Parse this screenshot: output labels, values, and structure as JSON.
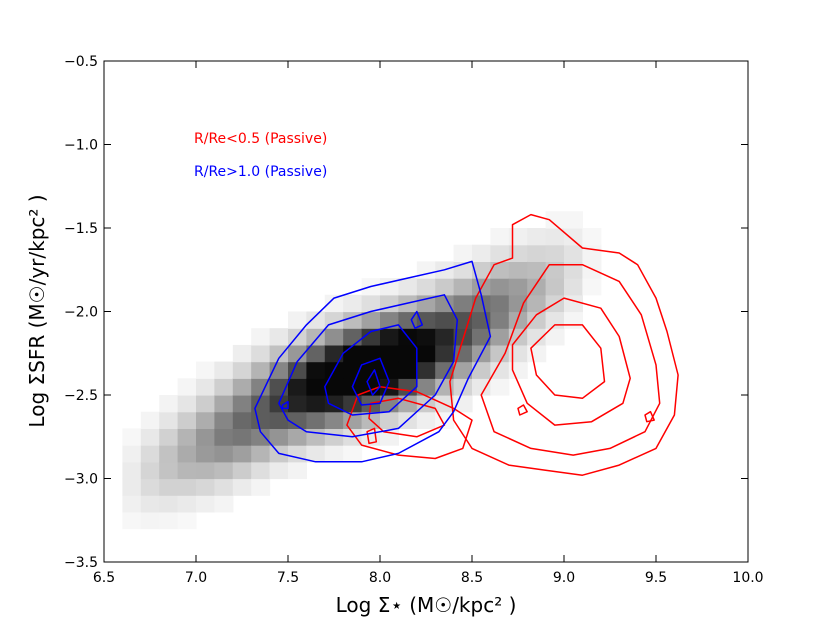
{
  "chart_data": {
    "type": "heatmap",
    "title": "",
    "xlabel": "Log Σ⋆ (M☉/kpc² )",
    "ylabel": "Log ΣSFR (M☉/yr/kpc² )",
    "xlim": [
      6.5,
      10.0
    ],
    "ylim": [
      -3.5,
      -0.5
    ],
    "xticks": [
      6.5,
      7.0,
      7.5,
      8.0,
      8.5,
      9.0,
      9.5,
      10.0
    ],
    "xtick_labels": [
      "6.5",
      "7.0",
      "7.5",
      "8.0",
      "8.5",
      "9.0",
      "9.5",
      "10.0"
    ],
    "yticks": [
      -0.5,
      -1.0,
      -1.5,
      -2.0,
      -2.5,
      -3.0,
      -3.5
    ],
    "ytick_labels": [
      "−0.5",
      "−1.0",
      "−1.5",
      "−2.0",
      "−2.5",
      "−3.0",
      "−3.5"
    ],
    "grid": false,
    "legend_placement": "top-left",
    "background_density": {
      "description_free": true,
      "ridge_slope": 0.52,
      "ridge_intercept_at_x8": -2.3,
      "ridge_width": 0.26,
      "x_range": [
        6.6,
        9.2
      ],
      "peak_location": [
        7.95,
        -2.35
      ],
      "colormap": "Greys"
    },
    "series": [
      {
        "name": "R/Re<0.5 (Passive)",
        "color": "#ff0000",
        "contours": [
          [
            [
              8.38,
              -2.42
            ],
            [
              8.52,
              -1.92
            ],
            [
              8.62,
              -1.72
            ],
            [
              8.72,
              -1.68
            ],
            [
              8.72,
              -1.48
            ],
            [
              8.82,
              -1.42
            ],
            [
              8.92,
              -1.45
            ],
            [
              9.1,
              -1.62
            ],
            [
              9.3,
              -1.65
            ],
            [
              9.4,
              -1.72
            ],
            [
              9.5,
              -1.92
            ],
            [
              9.56,
              -2.12
            ],
            [
              9.62,
              -2.38
            ],
            [
              9.6,
              -2.62
            ],
            [
              9.5,
              -2.82
            ],
            [
              9.3,
              -2.92
            ],
            [
              9.1,
              -2.98
            ],
            [
              8.9,
              -2.95
            ],
            [
              8.7,
              -2.92
            ],
            [
              8.5,
              -2.82
            ],
            [
              8.4,
              -2.65
            ]
          ],
          [
            [
              8.55,
              -2.5
            ],
            [
              8.68,
              -2.25
            ],
            [
              8.78,
              -1.95
            ],
            [
              8.92,
              -1.72
            ],
            [
              9.1,
              -1.72
            ],
            [
              9.3,
              -1.82
            ],
            [
              9.42,
              -2.02
            ],
            [
              9.5,
              -2.32
            ],
            [
              9.52,
              -2.55
            ],
            [
              9.44,
              -2.72
            ],
            [
              9.25,
              -2.82
            ],
            [
              9.05,
              -2.86
            ],
            [
              8.82,
              -2.82
            ],
            [
              8.62,
              -2.72
            ]
          ],
          [
            [
              8.72,
              -2.2
            ],
            [
              8.85,
              -2.02
            ],
            [
              9.0,
              -1.92
            ],
            [
              9.2,
              -1.98
            ],
            [
              9.3,
              -2.15
            ],
            [
              9.36,
              -2.4
            ],
            [
              9.32,
              -2.55
            ],
            [
              9.15,
              -2.66
            ],
            [
              8.95,
              -2.68
            ],
            [
              8.8,
              -2.55
            ],
            [
              8.72,
              -2.35
            ]
          ],
          [
            [
              8.82,
              -2.22
            ],
            [
              8.95,
              -2.08
            ],
            [
              9.1,
              -2.08
            ],
            [
              9.2,
              -2.22
            ],
            [
              9.22,
              -2.42
            ],
            [
              9.1,
              -2.52
            ],
            [
              8.95,
              -2.5
            ],
            [
              8.85,
              -2.38
            ]
          ],
          [
            [
              7.88,
              -2.5
            ],
            [
              8.0,
              -2.45
            ],
            [
              8.2,
              -2.48
            ],
            [
              8.4,
              -2.58
            ],
            [
              8.5,
              -2.65
            ],
            [
              8.45,
              -2.82
            ],
            [
              8.3,
              -2.88
            ],
            [
              8.1,
              -2.86
            ],
            [
              7.9,
              -2.8
            ],
            [
              7.82,
              -2.68
            ]
          ],
          [
            [
              7.95,
              -2.55
            ],
            [
              8.1,
              -2.52
            ],
            [
              8.3,
              -2.58
            ],
            [
              8.35,
              -2.68
            ],
            [
              8.2,
              -2.75
            ],
            [
              8.02,
              -2.72
            ],
            [
              7.94,
              -2.64
            ]
          ],
          [
            [
              7.93,
              -2.72
            ],
            [
              7.97,
              -2.7
            ],
            [
              7.98,
              -2.78
            ],
            [
              7.94,
              -2.79
            ]
          ],
          [
            [
              9.44,
              -2.62
            ],
            [
              9.47,
              -2.6
            ],
            [
              9.49,
              -2.65
            ],
            [
              9.45,
              -2.66
            ]
          ],
          [
            [
              8.75,
              -2.58
            ],
            [
              8.78,
              -2.56
            ],
            [
              8.8,
              -2.6
            ],
            [
              8.76,
              -2.62
            ]
          ]
        ]
      },
      {
        "name": "R/Re>1.0 (Passive)",
        "color": "#0000ff",
        "contours": [
          [
            [
              7.32,
              -2.58
            ],
            [
              7.45,
              -2.28
            ],
            [
              7.6,
              -2.08
            ],
            [
              7.75,
              -1.92
            ],
            [
              7.95,
              -1.85
            ],
            [
              8.15,
              -1.8
            ],
            [
              8.35,
              -1.75
            ],
            [
              8.5,
              -1.7
            ],
            [
              8.55,
              -1.9
            ],
            [
              8.6,
              -2.15
            ],
            [
              8.48,
              -2.4
            ],
            [
              8.4,
              -2.6
            ],
            [
              8.32,
              -2.72
            ],
            [
              8.1,
              -2.85
            ],
            [
              7.9,
              -2.9
            ],
            [
              7.65,
              -2.9
            ],
            [
              7.45,
              -2.85
            ],
            [
              7.35,
              -2.72
            ]
          ],
          [
            [
              7.45,
              -2.55
            ],
            [
              7.55,
              -2.3
            ],
            [
              7.72,
              -2.08
            ],
            [
              7.95,
              -2.0
            ],
            [
              8.15,
              -1.95
            ],
            [
              8.35,
              -1.9
            ],
            [
              8.42,
              -2.05
            ],
            [
              8.4,
              -2.3
            ],
            [
              8.3,
              -2.5
            ],
            [
              8.1,
              -2.7
            ],
            [
              7.85,
              -2.75
            ],
            [
              7.6,
              -2.72
            ],
            [
              7.5,
              -2.65
            ]
          ],
          [
            [
              7.7,
              -2.45
            ],
            [
              7.8,
              -2.25
            ],
            [
              7.95,
              -2.12
            ],
            [
              8.1,
              -2.08
            ],
            [
              8.2,
              -2.22
            ],
            [
              8.2,
              -2.45
            ],
            [
              8.05,
              -2.6
            ],
            [
              7.85,
              -2.62
            ],
            [
              7.72,
              -2.55
            ]
          ],
          [
            [
              7.85,
              -2.45
            ],
            [
              7.9,
              -2.32
            ],
            [
              8.0,
              -2.28
            ],
            [
              8.05,
              -2.42
            ],
            [
              8.0,
              -2.55
            ],
            [
              7.9,
              -2.56
            ]
          ],
          [
            [
              7.93,
              -2.42
            ],
            [
              7.97,
              -2.35
            ],
            [
              8.0,
              -2.45
            ],
            [
              7.96,
              -2.5
            ]
          ],
          [
            [
              8.17,
              -2.05
            ],
            [
              8.2,
              -2.0
            ],
            [
              8.23,
              -2.08
            ],
            [
              8.19,
              -2.1
            ]
          ],
          [
            [
              7.47,
              -2.56
            ],
            [
              7.5,
              -2.54
            ],
            [
              7.5,
              -2.58
            ],
            [
              7.47,
              -2.58
            ]
          ]
        ]
      }
    ]
  }
}
